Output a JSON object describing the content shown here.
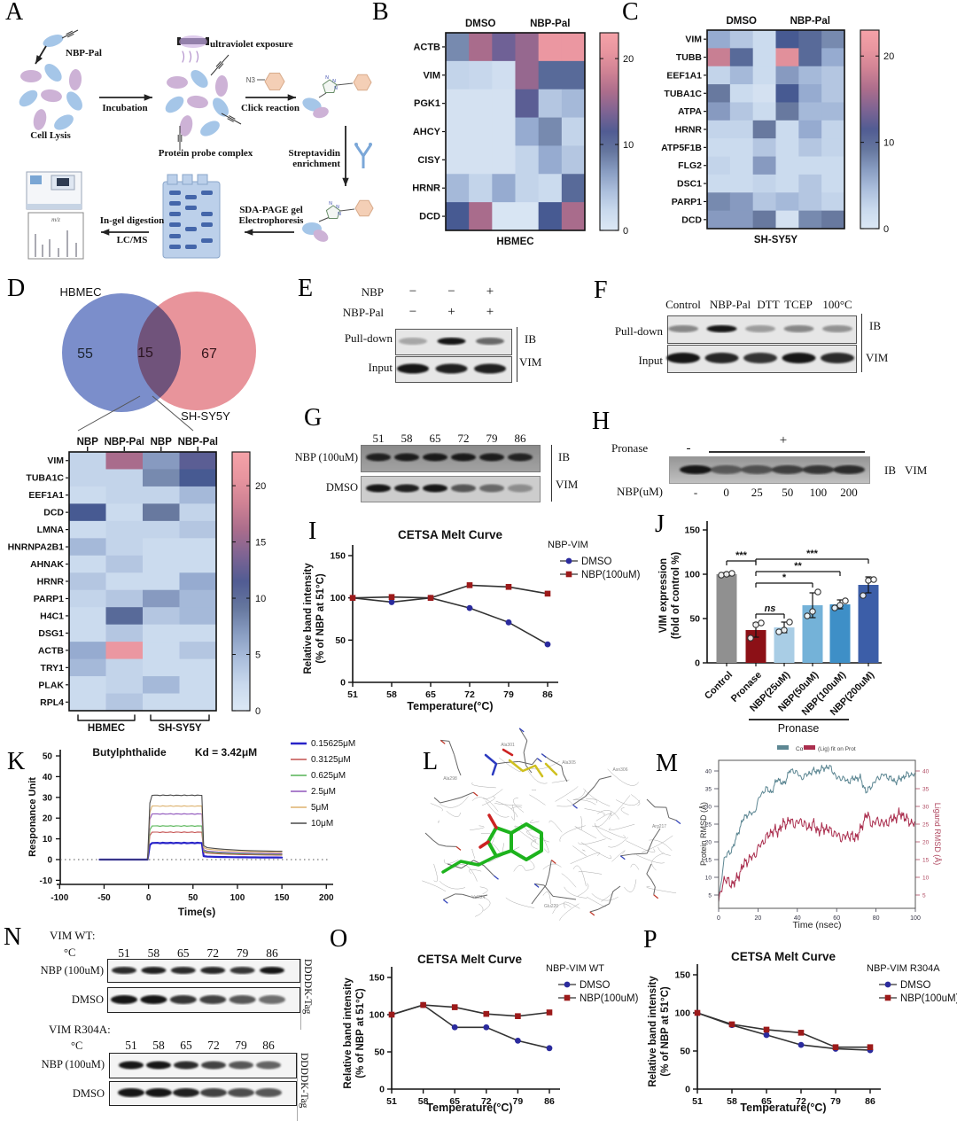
{
  "panels": {
    "A": {
      "letter": "A",
      "labels": {
        "nbp_pal": "NBP-Pal",
        "cell_lysis": "Cell Lysis",
        "incubation": "Incubation",
        "uv": "ultraviolet exposure",
        "complex": "Protein probe complex",
        "n3": "N3",
        "click": "Click reaction",
        "strep1": "Streptavidin",
        "strep2": "enrichment",
        "gel1": "SDA-PAGE gel",
        "gel2": "Electrophoresis",
        "digest": "In-gel digestion",
        "lcms": "LC/MS",
        "mz": "m/z"
      }
    },
    "B": {
      "letter": "B"
    },
    "C": {
      "letter": "C"
    },
    "D": {
      "letter": "D"
    },
    "E": {
      "letter": "E",
      "row1_label": "NBP",
      "row1": [
        "−",
        "−",
        "+"
      ],
      "row2_label": "NBP-Pal",
      "row2": [
        "−",
        "+",
        "+"
      ],
      "pulldown": "Pull-down",
      "input": "Input",
      "ib": "IB",
      "vim": "VIM",
      "bands": {
        "pulldown": [
          0.3,
          1,
          0.6
        ],
        "input": [
          1,
          0.95,
          0.95
        ]
      }
    },
    "F": {
      "letter": "F",
      "cols": [
        "Control",
        "NBP-Pal",
        "DTT",
        "TCEP",
        "100°C"
      ],
      "pulldown": "Pull-down",
      "input": "Input",
      "ib": "IB",
      "vim": "VIM",
      "bands": {
        "pulldown": [
          0.45,
          1,
          0.35,
          0.45,
          0.4
        ],
        "input": [
          1,
          0.92,
          0.85,
          1,
          0.9
        ]
      }
    },
    "G": {
      "letter": "G",
      "temps": [
        "51",
        "58",
        "65",
        "72",
        "79",
        "86"
      ],
      "row1": "NBP (100uM)",
      "row2": "DMSO",
      "ib": "IB",
      "vim": "VIM",
      "bands": {
        "row1": [
          0.92,
          0.95,
          0.97,
          0.97,
          0.95,
          0.9
        ],
        "row2": [
          1,
          0.95,
          1,
          0.65,
          0.55,
          0.35
        ]
      }
    },
    "H": {
      "letter": "H",
      "pronase": "Pronase",
      "minus": "-",
      "plus": "+",
      "nbp": "NBP(uM)",
      "doses": [
        "-",
        "0",
        "25",
        "50",
        "100",
        "200"
      ],
      "ib": "IB",
      "vim": "VIM",
      "bands": [
        1,
        0.55,
        0.6,
        0.72,
        0.78,
        0.85
      ]
    },
    "I": {
      "letter": "I"
    },
    "J": {
      "letter": "J"
    },
    "K": {
      "letter": "K"
    },
    "L": {
      "letter": "L",
      "residues": [
        "Ala298",
        "Ala301",
        "Ala305",
        "Asn306",
        "Arg217",
        "Val224",
        "Glu220"
      ]
    },
    "M": {
      "letter": "M"
    },
    "N": {
      "letter": "N",
      "block1": "VIM WT:",
      "block2": "VIM R304A:",
      "deg": "°C",
      "temps": [
        "51",
        "58",
        "65",
        "72",
        "79",
        "86"
      ],
      "row1": "NBP (100uM)",
      "row2": "DMSO",
      "tag": "DDDDK-Tag",
      "bands": {
        "wt_nbp": [
          0.9,
          0.95,
          0.9,
          0.92,
          0.85,
          1
        ],
        "wt_dmso": [
          1,
          1,
          0.85,
          0.8,
          0.7,
          0.6
        ],
        "mut_nbp": [
          1,
          1,
          0.9,
          0.8,
          0.7,
          0.65
        ],
        "mut_dmso": [
          1,
          1,
          0.95,
          0.8,
          0.75,
          0.7
        ]
      }
    },
    "O": {
      "letter": "O"
    },
    "P": {
      "letter": "P"
    }
  },
  "chart_data": [
    {
      "id": "heatmap_b",
      "type": "heatmap",
      "cell_line": "HBMEC",
      "col_groups": [
        "DMSO",
        "NBP-Pal"
      ],
      "rows": [
        "ACTB",
        "VIM",
        "PGK1",
        "AHCY",
        "CISY",
        "HRNR",
        "DCD"
      ],
      "values": [
        [
          8,
          16,
          13,
          15,
          21,
          21
        ],
        [
          3,
          2.5,
          1.5,
          15,
          10,
          10
        ],
        [
          1,
          1,
          1,
          12,
          4,
          5
        ],
        [
          1,
          1,
          1,
          6,
          8,
          3
        ],
        [
          1,
          1,
          1,
          3,
          6,
          4
        ],
        [
          5,
          3,
          6,
          3,
          2,
          10
        ],
        [
          11,
          16,
          0.5,
          0.5,
          11,
          16
        ]
      ],
      "colorbar_ticks": [
        0,
        10,
        20
      ]
    },
    {
      "id": "heatmap_c",
      "type": "heatmap",
      "cell_line": "SH-SY5Y",
      "col_groups": [
        "DMSO",
        "NBP-Pal"
      ],
      "rows": [
        "VIM",
        "TUBB",
        "EEF1A1",
        "TUBA1C",
        "ATPA",
        "HRNR",
        "ATP5F1B",
        "FLG2",
        "DSC1",
        "PARP1",
        "DCD"
      ],
      "values": [
        [
          6,
          4,
          2,
          11,
          10,
          8
        ],
        [
          18,
          10,
          2,
          20,
          10,
          6
        ],
        [
          3,
          5,
          2,
          7,
          5,
          4
        ],
        [
          9,
          2,
          1,
          11,
          6,
          4
        ],
        [
          7,
          4,
          2,
          9,
          5,
          5
        ],
        [
          3,
          3,
          9,
          2,
          6,
          3
        ],
        [
          2,
          2,
          4,
          2,
          4,
          3
        ],
        [
          3,
          2,
          7,
          2,
          2,
          2
        ],
        [
          2,
          2,
          3,
          2,
          4,
          2
        ],
        [
          8,
          7,
          4,
          5,
          4,
          3
        ],
        [
          7,
          7,
          9,
          1,
          8,
          9
        ]
      ],
      "colorbar_ticks": [
        0,
        10,
        20
      ]
    },
    {
      "id": "venn_d",
      "type": "venn",
      "left_label": "HBMEC",
      "right_label": "SH-SY5Y",
      "left_count": "55",
      "overlap_count": "15",
      "right_count": "67",
      "left_color": "#7b8ecb",
      "right_color": "#e8949b"
    },
    {
      "id": "heatmap_d",
      "type": "heatmap",
      "cols": [
        "NBP",
        "NBP-Pal",
        "NBP",
        "NBP-Pal"
      ],
      "bottom_groups": [
        "HBMEC",
        "SH-SY5Y"
      ],
      "rows": [
        "VIM",
        "TUBA1C",
        "EEF1A1",
        "DCD",
        "LMNA",
        "HNRNPA2B1",
        "AHNAK",
        "HRNR",
        "PARP1",
        "H4C1",
        "DSG1",
        "ACTB",
        "TRY1",
        "PLAK",
        "RPL4"
      ],
      "values": [
        [
          3,
          16,
          7,
          12
        ],
        [
          3,
          3,
          8,
          11
        ],
        [
          2,
          3,
          3,
          5
        ],
        [
          11,
          2,
          9,
          3
        ],
        [
          2,
          3,
          3,
          4
        ],
        [
          5,
          3,
          2,
          2
        ],
        [
          2,
          4,
          2,
          2
        ],
        [
          4,
          2,
          2,
          6
        ],
        [
          3,
          4,
          7,
          5
        ],
        [
          2,
          10,
          4,
          5
        ],
        [
          2,
          4,
          2,
          2
        ],
        [
          6,
          21,
          2,
          4
        ],
        [
          5,
          3,
          2,
          2
        ],
        [
          2,
          3,
          5,
          2
        ],
        [
          2,
          4,
          2,
          2
        ]
      ],
      "colorbar_ticks": [
        0,
        5,
        10,
        15,
        20
      ]
    },
    {
      "id": "cetsa_i",
      "type": "line",
      "title": "CETSA Melt Curve",
      "legend_title": "NBP-VIM",
      "xlabel": "Temperature(°C)",
      "ylabel": [
        "Relative band intensity",
        "(% of NBP at 51°C)"
      ],
      "x": [
        51,
        58,
        65,
        72,
        79,
        86
      ],
      "yticks": [
        0,
        50,
        100,
        150
      ],
      "ylim": [
        0,
        150
      ],
      "series": [
        {
          "name": "DMSO",
          "color": "#2b2b9d",
          "marker": "circle",
          "values": [
            100,
            95,
            100,
            88,
            71,
            45
          ]
        },
        {
          "name": "NBP(100uM)",
          "color": "#9c1a1a",
          "marker": "square",
          "values": [
            100,
            101,
            100,
            115,
            113,
            105
          ]
        }
      ]
    },
    {
      "id": "bar_j",
      "type": "bar",
      "ylabel": [
        "VIM expression",
        "(fold of control %)"
      ],
      "yticks": [
        0,
        50,
        100,
        150
      ],
      "ylim": [
        0,
        150
      ],
      "categories": [
        "Control",
        "Pronase",
        "NBP(25uM)",
        "NBP(50uM)",
        "NBP(100uM)",
        "NBP(200uM)"
      ],
      "values": [
        100,
        37,
        40,
        65,
        66,
        88
      ],
      "errors": [
        2,
        8,
        6,
        14,
        5,
        9
      ],
      "points": [
        [
          99,
          100,
          101
        ],
        [
          28,
          43,
          45
        ],
        [
          35,
          37,
          46
        ],
        [
          53,
          58,
          80
        ],
        [
          62,
          65,
          70
        ],
        [
          76,
          93,
          94
        ]
      ],
      "colors": [
        "#909090",
        "#8c1016",
        "#a9cde5",
        "#74b2d8",
        "#3e8fc7",
        "#3c5ea8"
      ],
      "sig": [
        {
          "a": 0,
          "b": 1,
          "label": "***"
        },
        {
          "a": 1,
          "b": 2,
          "label": "ns"
        },
        {
          "a": 1,
          "b": 3,
          "label": "*"
        },
        {
          "a": 1,
          "b": 4,
          "label": "**"
        },
        {
          "a": 1,
          "b": 5,
          "label": "***"
        }
      ],
      "bracket_label": "Pronase"
    },
    {
      "id": "spr_k",
      "type": "line",
      "title": "Butylphthalide",
      "kd": "Kd = 3.42μM",
      "ylabel": "Responance Unit",
      "xlabel": "Time(s)",
      "yticks": [
        -10,
        0,
        10,
        20,
        30,
        40,
        50
      ],
      "xticks": [
        -100,
        -50,
        0,
        50,
        100,
        150,
        200
      ],
      "series": [
        {
          "name": "0.15625μM",
          "color": "#2823c8",
          "ru": 8,
          "res": 1.2,
          "lw": 2.2
        },
        {
          "name": "0.3125μM",
          "color": "#c4504f",
          "ru": 13.2,
          "res": 2.6,
          "lw": 1.1
        },
        {
          "name": "0.625μM",
          "color": "#55b455",
          "ru": 16.2,
          "res": 3.0,
          "lw": 1.1
        },
        {
          "name": "2.5μM",
          "color": "#8f55bb",
          "ru": 22,
          "res": 3.4,
          "lw": 1.1
        },
        {
          "name": "5μM",
          "color": "#ddb26e",
          "ru": 25.8,
          "res": 4.2,
          "lw": 1.1
        },
        {
          "name": "10μM",
          "color": "#4a4a4a",
          "ru": 31,
          "res": 4.8,
          "lw": 1.1
        }
      ]
    },
    {
      "id": "rmsd_m",
      "type": "line",
      "legend": [
        "Cα",
        "(Lig) fit on Prot"
      ],
      "xlabel": "Time (nsec)",
      "ylabel_left": "Protein RMSD (Å)",
      "ylabel_right": "Ligand RMSD (Å)",
      "yticks": [
        5,
        10,
        15,
        20,
        25,
        30,
        35,
        40
      ],
      "xticks": [
        0,
        20,
        40,
        60,
        80,
        100
      ],
      "series": [
        {
          "name": "protein",
          "color": "#5d8793",
          "anchors": [
            [
              0,
              3
            ],
            [
              3,
              16
            ],
            [
              6,
              17
            ],
            [
              9,
              21
            ],
            [
              12,
              26
            ],
            [
              15,
              28
            ],
            [
              18,
              28
            ],
            [
              21,
              33
            ],
            [
              24,
              35
            ],
            [
              27,
              34
            ],
            [
              30,
              38
            ],
            [
              33,
              36
            ],
            [
              36,
              40
            ],
            [
              39,
              40
            ],
            [
              42,
              38
            ],
            [
              45,
              39
            ],
            [
              48,
              40
            ],
            [
              51,
              40
            ],
            [
              54,
              41
            ],
            [
              57,
              41
            ],
            [
              60,
              38
            ],
            [
              63,
              38
            ],
            [
              66,
              37
            ],
            [
              69,
              38
            ],
            [
              72,
              38
            ],
            [
              75,
              34
            ],
            [
              78,
              36
            ],
            [
              81,
              38
            ],
            [
              84,
              39
            ],
            [
              87,
              38
            ],
            [
              90,
              37
            ],
            [
              93,
              38
            ],
            [
              96,
              39
            ],
            [
              100,
              39
            ]
          ]
        },
        {
          "name": "ligand",
          "color": "#aa2e4e",
          "anchors": [
            [
              0,
              3
            ],
            [
              3,
              10
            ],
            [
              6,
              8
            ],
            [
              9,
              9
            ],
            [
              12,
              13
            ],
            [
              15,
              15
            ],
            [
              18,
              16
            ],
            [
              21,
              19
            ],
            [
              24,
              21
            ],
            [
              27,
              23
            ],
            [
              30,
              23
            ],
            [
              33,
              25
            ],
            [
              36,
              26
            ],
            [
              39,
              25
            ],
            [
              42,
              26
            ],
            [
              45,
              24
            ],
            [
              48,
              25
            ],
            [
              51,
              23
            ],
            [
              54,
              24
            ],
            [
              57,
              23
            ],
            [
              60,
              22
            ],
            [
              63,
              21
            ],
            [
              66,
              22
            ],
            [
              69,
              21
            ],
            [
              72,
              23
            ],
            [
              75,
              28
            ],
            [
              78,
              25
            ],
            [
              81,
              26
            ],
            [
              84,
              25
            ],
            [
              87,
              26
            ],
            [
              90,
              27
            ],
            [
              93,
              28
            ],
            [
              96,
              26
            ],
            [
              100,
              25
            ]
          ]
        }
      ]
    },
    {
      "id": "cetsa_o",
      "type": "line",
      "title": "CETSA Melt Curve",
      "legend_title": "NBP-VIM WT",
      "xlabel": "Temperature(°C)",
      "ylabel": [
        "Relative band intensity",
        "(% of NBP at 51°C)"
      ],
      "x": [
        51,
        58,
        65,
        72,
        79,
        86
      ],
      "yticks": [
        0,
        50,
        100,
        150
      ],
      "ylim": [
        0,
        150
      ],
      "series": [
        {
          "name": "DMSO",
          "color": "#2b2b9d",
          "marker": "circle",
          "values": [
            100,
            113,
            83,
            83,
            65,
            55
          ]
        },
        {
          "name": "NBP(100uM)",
          "color": "#9c1a1a",
          "marker": "square",
          "values": [
            100,
            113,
            110,
            101,
            98,
            103
          ]
        }
      ]
    },
    {
      "id": "cetsa_p",
      "type": "line",
      "title": "CETSA Melt Curve",
      "legend_title": "NBP-VIM R304A",
      "xlabel": "Temperature(°C)",
      "ylabel": [
        "Relative band intensity",
        "(% of NBP at 51°C)"
      ],
      "x": [
        51,
        58,
        65,
        72,
        79,
        86
      ],
      "yticks": [
        0,
        50,
        100,
        150
      ],
      "ylim": [
        0,
        150
      ],
      "series": [
        {
          "name": "DMSO",
          "color": "#2b2b9d",
          "marker": "circle",
          "values": [
            100,
            84,
            71,
            58,
            53,
            51
          ]
        },
        {
          "name": "NBP(100uM)",
          "color": "#9c1a1a",
          "marker": "square",
          "values": [
            100,
            85,
            78,
            74,
            55,
            55
          ]
        }
      ]
    }
  ]
}
